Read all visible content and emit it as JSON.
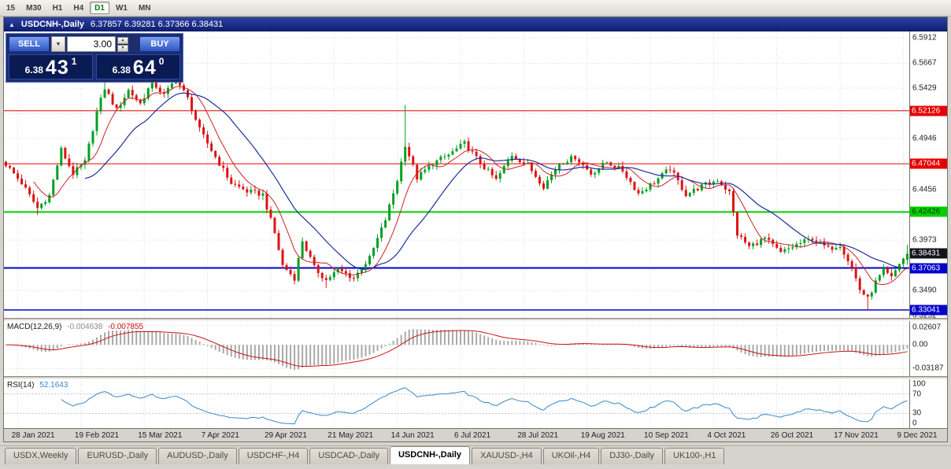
{
  "toolbar": {
    "timeframes": [
      "15",
      "M30",
      "H1",
      "H4",
      "D1",
      "W1",
      "MN"
    ],
    "active": "D1"
  },
  "chart_header": {
    "title": "USDCNH-,Daily",
    "ohlc": "6.37857 6.39281 6.37366 6.38431"
  },
  "icons": {
    "title_arrow": "▲",
    "dropdown_arrow": "▼",
    "spinner_up": "▲",
    "spinner_down": "▼"
  },
  "trade_panel": {
    "sell": {
      "label": "SELL",
      "price_main": "6.38",
      "price_big": "43",
      "price_sup": "1"
    },
    "buy": {
      "label": "BUY",
      "price_main": "6.38",
      "price_big": "64",
      "price_sup": "0"
    },
    "volume": "3.00"
  },
  "price_axis": [
    {
      "v": 6.5912,
      "t": "6.5912"
    },
    {
      "v": 6.5667,
      "t": "6.5667"
    },
    {
      "v": 6.5429,
      "t": "6.5429"
    },
    {
      "v": 6.5184,
      "t": "6.5184"
    },
    {
      "v": 6.4946,
      "t": "6.4946"
    },
    {
      "v": 6.4456,
      "t": "6.4456"
    },
    {
      "v": 6.3973,
      "t": "6.3973"
    },
    {
      "v": 6.349,
      "t": "6.3490"
    },
    {
      "v": 6.3252,
      "t": "6.3252"
    }
  ],
  "levels": [
    {
      "v": 6.52126,
      "t": "6.52126",
      "color": "#e60000",
      "fg": "#ffffff",
      "w": 1
    },
    {
      "v": 6.47044,
      "t": "6.47044",
      "color": "#e60000",
      "fg": "#ffffff",
      "w": 1
    },
    {
      "v": 6.42426,
      "t": "6.42426",
      "color": "#00cf00",
      "fg": "#003300",
      "w": 2
    },
    {
      "v": 6.37063,
      "t": "6.37063",
      "color": "#0202cc",
      "fg": "#ffffff",
      "w": 2
    },
    {
      "v": 6.33041,
      "t": "6.33041",
      "color": "#0202cc",
      "fg": "#ffffff",
      "w": 1.5
    }
  ],
  "current_price": {
    "v": 6.38431,
    "t": "6.38431",
    "bg": "#14141d",
    "fg": "#ffffff"
  },
  "macd": {
    "title": "MACD(12,26,9)",
    "value": "-0.004638",
    "signal": "-0.007855",
    "ylim": [
      -0.042,
      0.032
    ],
    "axis": [
      {
        "v": 0.02607,
        "t": "0.02607"
      },
      {
        "v": 0,
        "t": "0.00"
      },
      {
        "v": -0.03187,
        "t": "-0.03187"
      }
    ],
    "histogram_color": "#a9a9a9",
    "signal_color": "#cc1111"
  },
  "rsi": {
    "title": "RSI(14)",
    "value": "52.1643",
    "ylim": [
      0,
      100
    ],
    "levels": [
      70,
      30
    ],
    "axis": [
      {
        "v": 100,
        "t": "100"
      },
      {
        "v": 70,
        "t": "70"
      },
      {
        "v": 30,
        "t": "30"
      },
      {
        "v": 0,
        "t": "0"
      }
    ],
    "line_color": "#3a87c8"
  },
  "date_axis": {
    "first_index": 3,
    "step": 16,
    "labels": [
      "28 Jan 2021",
      "19 Feb 2021",
      "15 Mar 2021",
      "7 Apr 2021",
      "29 Apr 2021",
      "21 May 2021",
      "14 Jun 2021",
      "6 Jul 2021",
      "28 Jul 2021",
      "19 Aug 2021",
      "10 Sep 2021",
      "4 Oct 2021",
      "26 Oct 2021",
      "17 Nov 2021",
      "9 Dec 2021"
    ]
  },
  "tabs": {
    "active_index": 5,
    "items": [
      "USDX,Weekly",
      "EURUSD-,Daily",
      "AUDUSD-,Daily",
      "USDCHF-,H4",
      "USDCAD-,Daily",
      "USDCNH-,Daily",
      "XAUUSD-,H4",
      "UKOil-,H4",
      "DJ30-,Daily",
      "UK100-,H1"
    ]
  },
  "chart_data": {
    "type": "candlestick",
    "symbol": "USDCNH",
    "period": "Daily",
    "n_candles": 229,
    "ylim": [
      6.3228,
      6.5972
    ],
    "up_color": "#00a024",
    "down_color": "#dc1414",
    "ma_fast": {
      "period": 8,
      "color": "#cc2222"
    },
    "ma_slow": {
      "period": 21,
      "color": "#1c2f9e"
    },
    "noise": 0.005,
    "wick": 0.004,
    "price_anchors": [
      [
        0,
        6.47
      ],
      [
        4,
        6.452
      ],
      [
        8,
        6.428
      ],
      [
        11,
        6.44
      ],
      [
        14,
        6.484
      ],
      [
        17,
        6.461
      ],
      [
        20,
        6.472
      ],
      [
        23,
        6.52
      ],
      [
        25,
        6.543
      ],
      [
        28,
        6.522
      ],
      [
        31,
        6.541
      ],
      [
        34,
        6.528
      ],
      [
        37,
        6.549
      ],
      [
        40,
        6.536
      ],
      [
        43,
        6.552
      ],
      [
        46,
        6.533
      ],
      [
        49,
        6.503
      ],
      [
        53,
        6.477
      ],
      [
        57,
        6.452
      ],
      [
        61,
        6.444
      ],
      [
        65,
        6.441
      ],
      [
        68,
        6.404
      ],
      [
        70,
        6.373
      ],
      [
        73,
        6.361
      ],
      [
        75,
        6.397
      ],
      [
        78,
        6.371
      ],
      [
        81,
        6.359
      ],
      [
        84,
        6.369
      ],
      [
        88,
        6.361
      ],
      [
        92,
        6.38
      ],
      [
        96,
        6.417
      ],
      [
        99,
        6.455
      ],
      [
        101,
        6.489
      ],
      [
        104,
        6.457
      ],
      [
        108,
        6.471
      ],
      [
        112,
        6.479
      ],
      [
        116,
        6.49
      ],
      [
        120,
        6.471
      ],
      [
        124,
        6.455
      ],
      [
        128,
        6.479
      ],
      [
        132,
        6.469
      ],
      [
        136,
        6.449
      ],
      [
        140,
        6.471
      ],
      [
        144,
        6.477
      ],
      [
        148,
        6.461
      ],
      [
        152,
        6.472
      ],
      [
        156,
        6.464
      ],
      [
        160,
        6.442
      ],
      [
        164,
        6.453
      ],
      [
        168,
        6.466
      ],
      [
        172,
        6.441
      ],
      [
        176,
        6.449
      ],
      [
        180,
        6.455
      ],
      [
        183,
        6.443
      ],
      [
        185,
        6.403
      ],
      [
        188,
        6.391
      ],
      [
        192,
        6.399
      ],
      [
        196,
        6.385
      ],
      [
        200,
        6.393
      ],
      [
        204,
        6.399
      ],
      [
        208,
        6.389
      ],
      [
        211,
        6.393
      ],
      [
        214,
        6.371
      ],
      [
        216,
        6.35
      ],
      [
        218,
        6.341
      ],
      [
        220,
        6.357
      ],
      [
        222,
        6.368
      ],
      [
        224,
        6.361
      ],
      [
        226,
        6.375
      ],
      [
        228,
        6.38431
      ]
    ],
    "spikes": [
      {
        "i": 8,
        "low": 6.4215
      },
      {
        "i": 25,
        "high": 6.552
      },
      {
        "i": 43,
        "high": 6.559
      },
      {
        "i": 81,
        "low": 6.3515
      },
      {
        "i": 101,
        "high": 6.527
      },
      {
        "i": 218,
        "low": 6.3304
      }
    ],
    "last": {
      "open": 6.37857,
      "high": 6.39281,
      "low": 6.37366,
      "close": 6.38431
    },
    "indicator_levels": [
      6.52126,
      6.47044,
      6.42426,
      6.37063,
      6.33041
    ]
  }
}
